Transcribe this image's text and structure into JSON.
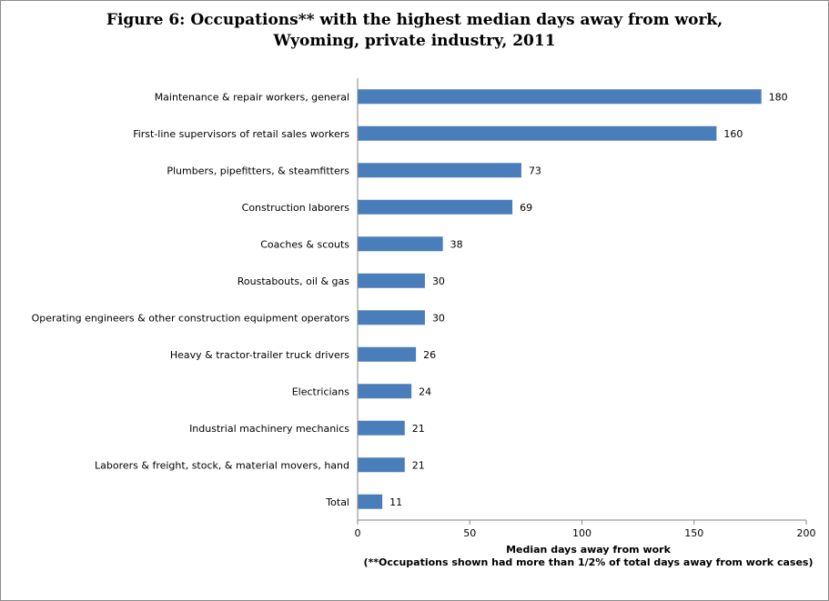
{
  "chart_data": {
    "type": "bar",
    "orientation": "horizontal",
    "title": "Figure 6: Occupations** with the highest median days away from work,",
    "subtitle": "Wyoming, private industry, 2011",
    "xlabel": "Median days away from work",
    "footnote": "(**Occupations shown had more than 1/2% of total days away from work cases)",
    "categories": [
      "Maintenance & repair workers, general",
      "First-line supervisors of retail sales workers",
      "Plumbers, pipefitters, & steamfitters",
      "Construction laborers",
      "Coaches & scouts",
      "Roustabouts, oil & gas",
      "Operating engineers & other construction equipment operators",
      "Heavy & tractor-trailer truck drivers",
      "Electricians",
      "Industrial machinery mechanics",
      "Laborers & freight, stock, & material movers, hand",
      "Total"
    ],
    "values": [
      180,
      160,
      73,
      69,
      38,
      30,
      30,
      26,
      24,
      21,
      21,
      11
    ],
    "xlim": [
      0,
      200
    ],
    "xticks": [
      0,
      50,
      100,
      150,
      200
    ],
    "grid": false,
    "legend": "none",
    "bar_color": "#4a7ebb"
  }
}
